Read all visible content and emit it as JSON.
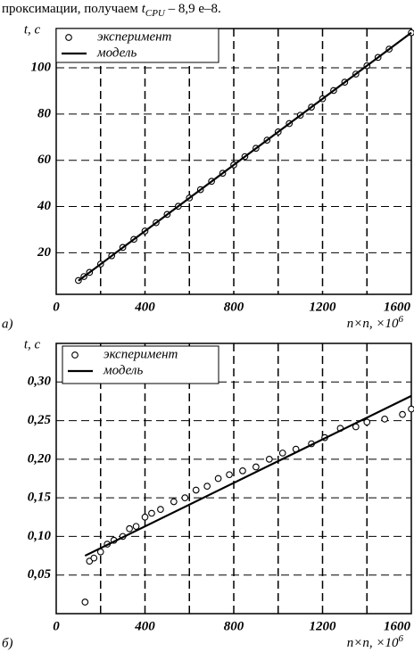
{
  "header": {
    "text": "проксимации, получаем ",
    "var": "t",
    "sub": "CPU",
    "rest": " – 8,9 e–8."
  },
  "chart_data": [
    {
      "type": "scatter",
      "panel": "а)",
      "y_label": "t, c",
      "x_label": "n×n,  ×10",
      "x_label_sup": "6",
      "xlim": [
        0,
        1600
      ],
      "xticks": [
        0,
        400,
        800,
        1200,
        1600
      ],
      "xgrid": [
        200,
        400,
        600,
        800,
        1000,
        1200,
        1400
      ],
      "ylim": [
        2,
        117
      ],
      "yticks": [
        20,
        40,
        60,
        80,
        100
      ],
      "grid": true,
      "series": [
        {
          "name": "эксперимент",
          "kind": "points",
          "color": "#000000",
          "x": [
            100,
            125,
            150,
            200,
            250,
            300,
            350,
            400,
            450,
            500,
            550,
            600,
            650,
            700,
            750,
            800,
            850,
            900,
            950,
            1000,
            1050,
            1100,
            1150,
            1200,
            1250,
            1300,
            1350,
            1400,
            1450,
            1500,
            1600
          ],
          "values": [
            8.0,
            9.7,
            11.5,
            15.1,
            18.7,
            22.3,
            25.8,
            29.4,
            33.0,
            36.6,
            40.1,
            43.7,
            47.3,
            50.9,
            54.4,
            58.0,
            61.6,
            65.2,
            68.7,
            72.3,
            75.9,
            79.5,
            83.0,
            86.6,
            90.2,
            93.8,
            97.3,
            100.9,
            104.5,
            108.1,
            115.2
          ]
        },
        {
          "name": "модель",
          "kind": "line",
          "color": "#000000",
          "x": [
            100,
            1600
          ],
          "values": [
            7.9,
            115.2
          ]
        }
      ]
    },
    {
      "type": "scatter",
      "panel": "б)",
      "y_label": "t, c",
      "x_label": "n×n,  ×10",
      "x_label_sup": "6",
      "xlim": [
        0,
        1600
      ],
      "xticks": [
        0,
        400,
        800,
        1200,
        1600
      ],
      "xgrid": [
        200,
        400,
        600,
        800,
        1000,
        1200,
        1400
      ],
      "ylim": [
        0,
        0.35
      ],
      "yticks": [
        {
          "value": 0.05,
          "label": "0,05"
        },
        {
          "value": 0.1,
          "label": "0,10"
        },
        {
          "value": 0.15,
          "label": "0,15"
        },
        {
          "value": 0.2,
          "label": "0,20"
        },
        {
          "value": 0.25,
          "label": "0,25"
        },
        {
          "value": 0.3,
          "label": "0,30"
        }
      ],
      "grid": true,
      "series": [
        {
          "name": "эксперимент",
          "kind": "points",
          "color": "#000000",
          "x": [
            130,
            150,
            170,
            200,
            230,
            260,
            300,
            330,
            360,
            400,
            430,
            470,
            530,
            580,
            630,
            680,
            730,
            780,
            840,
            900,
            960,
            1020,
            1080,
            1150,
            1210,
            1280,
            1350,
            1400,
            1480,
            1560,
            1600
          ],
          "values": [
            0.015,
            0.068,
            0.072,
            0.08,
            0.09,
            0.095,
            0.1,
            0.11,
            0.113,
            0.125,
            0.13,
            0.135,
            0.145,
            0.15,
            0.16,
            0.165,
            0.175,
            0.18,
            0.185,
            0.19,
            0.2,
            0.208,
            0.213,
            0.22,
            0.228,
            0.24,
            0.242,
            0.248,
            0.252,
            0.258,
            0.265
          ]
        },
        {
          "name": "модель",
          "kind": "line",
          "color": "#000000",
          "x": [
            130,
            1600
          ],
          "values": [
            0.075,
            0.282
          ]
        }
      ]
    }
  ]
}
